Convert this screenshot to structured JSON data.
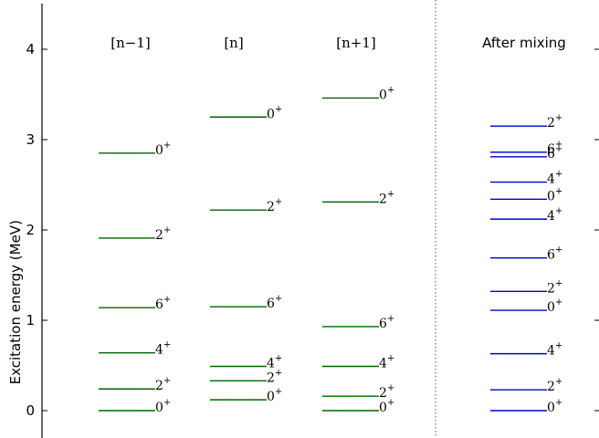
{
  "chart_data": {
    "type": "level-scheme",
    "ylabel": "Excitation energy (MeV)",
    "ylim": [
      -0.3,
      4.5
    ],
    "yticks": [
      0,
      1,
      2,
      3,
      4
    ],
    "ytick_labels": [
      "0",
      "1",
      "2",
      "3",
      "4"
    ],
    "columns": [
      {
        "label": "[n−1]",
        "color": "#006400",
        "levels": [
          {
            "energy": 2.85,
            "spin": "0",
            "parity": "+"
          },
          {
            "energy": 1.91,
            "spin": "2",
            "parity": "+"
          },
          {
            "energy": 1.14,
            "spin": "6",
            "parity": "+"
          },
          {
            "energy": 0.64,
            "spin": "4",
            "parity": "+"
          },
          {
            "energy": 0.24,
            "spin": "2",
            "parity": "+"
          },
          {
            "energy": 0.0,
            "spin": "0",
            "parity": "+"
          }
        ]
      },
      {
        "label": "[n]",
        "color": "#006400",
        "levels": [
          {
            "energy": 3.25,
            "spin": "0",
            "parity": "+"
          },
          {
            "energy": 2.22,
            "spin": "2",
            "parity": "+"
          },
          {
            "energy": 1.15,
            "spin": "6",
            "parity": "+"
          },
          {
            "energy": 0.49,
            "spin": "4",
            "parity": "+"
          },
          {
            "energy": 0.33,
            "spin": "2",
            "parity": "+"
          },
          {
            "energy": 0.12,
            "spin": "0",
            "parity": "+"
          }
        ]
      },
      {
        "label": "[n+1]",
        "color": "#006400",
        "levels": [
          {
            "energy": 3.46,
            "spin": "0",
            "parity": "+"
          },
          {
            "energy": 2.31,
            "spin": "2",
            "parity": "+"
          },
          {
            "energy": 0.93,
            "spin": "6",
            "parity": "+"
          },
          {
            "energy": 0.49,
            "spin": "4",
            "parity": "+"
          },
          {
            "energy": 0.16,
            "spin": "2",
            "parity": "+"
          },
          {
            "energy": 0.0,
            "spin": "0",
            "parity": "+"
          }
        ]
      },
      {
        "label": "After mixing",
        "color": "#0000cd",
        "levels": [
          {
            "energy": 3.15,
            "spin": "2",
            "parity": "+"
          },
          {
            "energy": 2.86,
            "spin": "6",
            "parity": "+"
          },
          {
            "energy": 2.81,
            "spin": "6",
            "parity": "+"
          },
          {
            "energy": 2.53,
            "spin": "4",
            "parity": "+"
          },
          {
            "energy": 2.34,
            "spin": "0",
            "parity": "+"
          },
          {
            "energy": 2.12,
            "spin": "4",
            "parity": "+"
          },
          {
            "energy": 1.69,
            "spin": "6",
            "parity": "+"
          },
          {
            "energy": 1.32,
            "spin": "2",
            "parity": "+"
          },
          {
            "energy": 1.11,
            "spin": "0",
            "parity": "+"
          },
          {
            "energy": 0.63,
            "spin": "4",
            "parity": "+"
          },
          {
            "energy": 0.23,
            "spin": "2",
            "parity": "+"
          },
          {
            "energy": 0.0,
            "spin": "0",
            "parity": "+"
          }
        ]
      }
    ],
    "separator": "dotted vertical line between [n+1] and After mixing",
    "grid": false
  }
}
